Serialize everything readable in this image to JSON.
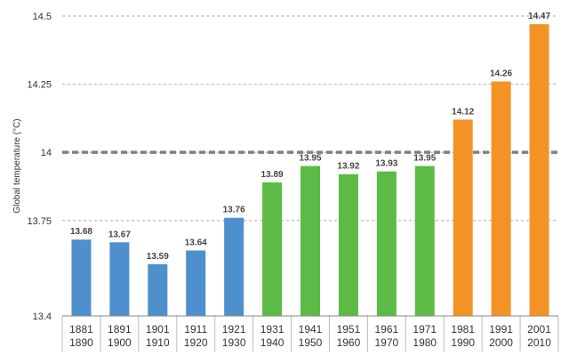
{
  "chart_data": {
    "type": "bar",
    "ylabel": "Global temperature (°C)",
    "ylim": [
      13.4,
      14.5
    ],
    "yticks": [
      "13.4",
      "13.75",
      "14",
      "14.25",
      "14.5"
    ],
    "grid": true,
    "reference_line": 14.0,
    "categories": [
      [
        "1881",
        "1890"
      ],
      [
        "1891",
        "1900"
      ],
      [
        "1901",
        "1910"
      ],
      [
        "1911",
        "1920"
      ],
      [
        "1921",
        "1930"
      ],
      [
        "1931",
        "1940"
      ],
      [
        "1941",
        "1950"
      ],
      [
        "1951",
        "1960"
      ],
      [
        "1961",
        "1970"
      ],
      [
        "1971",
        "1980"
      ],
      [
        "1981",
        "1990"
      ],
      [
        "1991",
        "2000"
      ],
      [
        "2001",
        "2010"
      ]
    ],
    "values": [
      13.68,
      13.67,
      13.59,
      13.64,
      13.76,
      13.89,
      13.95,
      13.92,
      13.93,
      13.95,
      14.12,
      14.26,
      14.47
    ],
    "labels": [
      "13.68",
      "13.67",
      "13.59",
      "13.64",
      "13.76",
      "13.89",
      "13.95",
      "13.92",
      "13.93",
      "13.95",
      "14.12",
      "14.26",
      "14.47"
    ],
    "colors": [
      "#4e8fcd",
      "#4e8fcd",
      "#4e8fcd",
      "#4e8fcd",
      "#4e8fcd",
      "#5cbb46",
      "#5cbb46",
      "#5cbb46",
      "#5cbb46",
      "#5cbb46",
      "#f39325",
      "#f39325",
      "#f39325"
    ],
    "colors_meaning": "blue 1881–1930, green 1931–1980, orange 1981–2010"
  }
}
